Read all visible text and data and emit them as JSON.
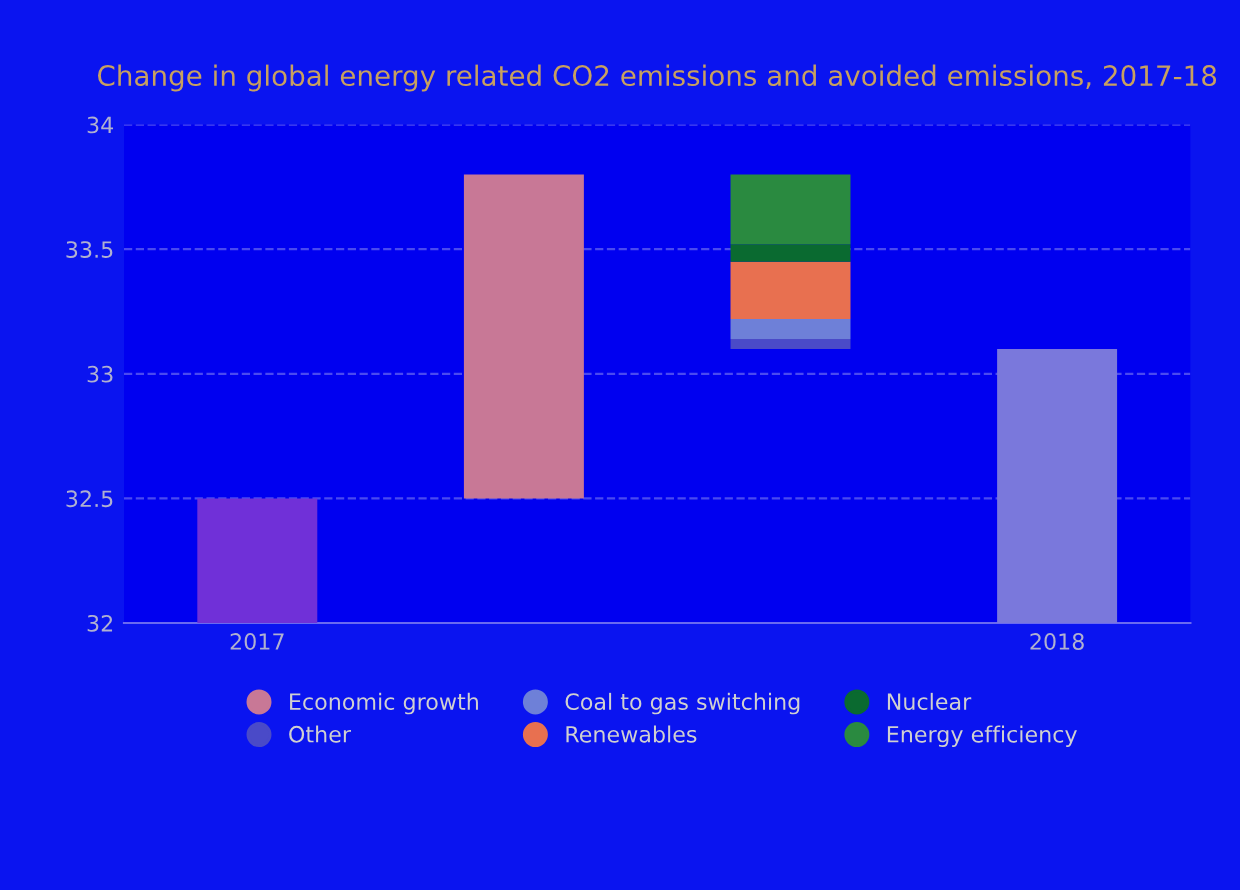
{
  "chart_data": {
    "type": "bar",
    "title": "Change in global energy related CO2 emissions and avoided emissions, 2017-18",
    "categories": [
      "2017",
      null,
      null,
      "2018"
    ],
    "series": [
      {
        "color": "#7030d8",
        "values": [
          32.5,
          null,
          null,
          null
        ]
      },
      {
        "name": "Economic growth",
        "color": "#c87896",
        "values": [
          null,
          1.3,
          null,
          null
        ],
        "base": [
          null,
          32.5,
          null,
          null
        ]
      },
      {
        "name": "Other",
        "color": "#4a4ac8",
        "values": [
          null,
          null,
          0.04,
          null
        ],
        "base": [
          null,
          null,
          33.1,
          null
        ]
      },
      {
        "name": "Coal to gas switching",
        "color": "#6e80d8",
        "values": [
          null,
          null,
          0.08,
          null
        ],
        "base": [
          null,
          null,
          33.14,
          null
        ]
      },
      {
        "name": "Renewables",
        "color": "#e87050",
        "values": [
          null,
          null,
          0.23,
          null
        ],
        "base": [
          null,
          null,
          33.22,
          null
        ]
      },
      {
        "name": "Nuclear",
        "color": "#0a6a30",
        "values": [
          null,
          null,
          0.07,
          null
        ],
        "base": [
          null,
          null,
          33.45,
          null
        ]
      },
      {
        "name": "Energy efficiency",
        "color": "#2a8a40",
        "values": [
          null,
          null,
          0.28,
          null
        ],
        "base": [
          null,
          null,
          33.52,
          null
        ]
      },
      {
        "color": "#7a78dc",
        "values": [
          null,
          null,
          null,
          33.1
        ]
      }
    ],
    "ylim": [
      32,
      34
    ],
    "yticks": [
      32,
      32.5,
      33,
      33.5,
      34
    ],
    "grid": "y",
    "legend": "bottom"
  }
}
